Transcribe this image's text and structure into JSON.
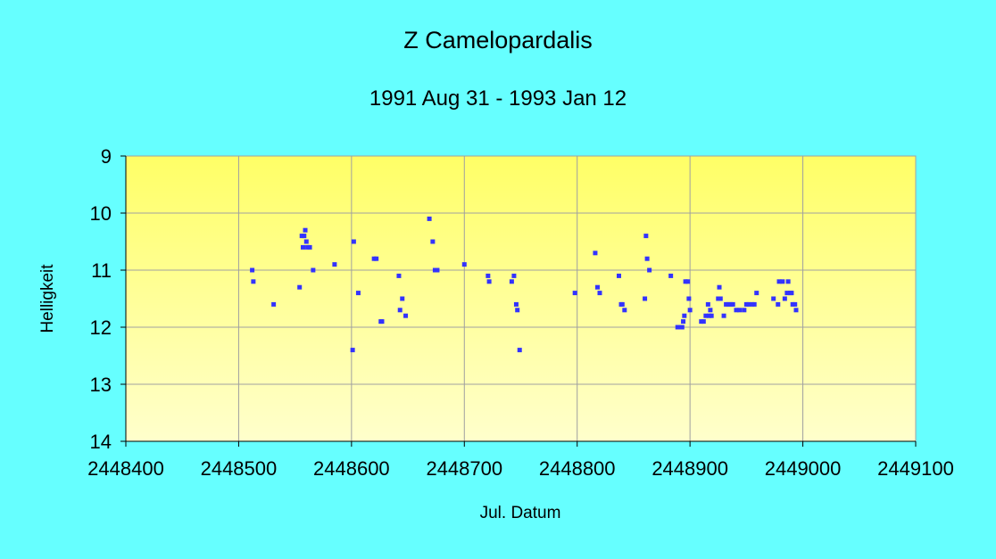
{
  "chart_data": {
    "type": "scatter",
    "title": "Z Camelopardalis",
    "subtitle": "1991 Aug 31 - 1993 Jan 12",
    "xlabel": "Jul. Datum",
    "ylabel": "Helligkeit",
    "xlim": [
      2448400,
      2449100
    ],
    "ylim": [
      9,
      14
    ],
    "y_inverted": true,
    "x_ticks": [
      2448400,
      2448500,
      2448600,
      2448700,
      2448800,
      2448900,
      2449000,
      2449100
    ],
    "y_ticks": [
      9,
      10,
      11,
      12,
      13,
      14
    ],
    "grid": true,
    "legend": "none",
    "colors": {
      "background": "#66FFFF",
      "plot_top": "#FFFF66",
      "plot_bottom": "#FFFFCC",
      "marker": "#3333FF",
      "gridline": "#A0A0A0"
    },
    "series": [
      {
        "points": [
          [
            2448512,
            11.0
          ],
          [
            2448513,
            11.2
          ],
          [
            2448531,
            11.6
          ],
          [
            2448554,
            11.3
          ],
          [
            2448556,
            10.4
          ],
          [
            2448557,
            10.6
          ],
          [
            2448558,
            10.4
          ],
          [
            2448559,
            10.3
          ],
          [
            2448560,
            10.5
          ],
          [
            2448561,
            10.6
          ],
          [
            2448563,
            10.6
          ],
          [
            2448566,
            11.0
          ],
          [
            2448585,
            10.9
          ],
          [
            2448601,
            12.4
          ],
          [
            2448602,
            10.5
          ],
          [
            2448606,
            11.4
          ],
          [
            2448620,
            10.8
          ],
          [
            2448622,
            10.8
          ],
          [
            2448626,
            11.9
          ],
          [
            2448627,
            11.9
          ],
          [
            2448642,
            11.1
          ],
          [
            2448643,
            11.7
          ],
          [
            2448645,
            11.5
          ],
          [
            2448648,
            11.8
          ],
          [
            2448669,
            10.1
          ],
          [
            2448672,
            10.5
          ],
          [
            2448674,
            11.0
          ],
          [
            2448676,
            11.0
          ],
          [
            2448700,
            10.9
          ],
          [
            2448721,
            11.1
          ],
          [
            2448722,
            11.2
          ],
          [
            2448742,
            11.2
          ],
          [
            2448744,
            11.1
          ],
          [
            2448746,
            11.6
          ],
          [
            2448747,
            11.7
          ],
          [
            2448749,
            12.4
          ],
          [
            2448798,
            11.4
          ],
          [
            2448816,
            10.7
          ],
          [
            2448818,
            11.3
          ],
          [
            2448820,
            11.4
          ],
          [
            2448837,
            11.1
          ],
          [
            2448839,
            11.6
          ],
          [
            2448840,
            11.6
          ],
          [
            2448842,
            11.7
          ],
          [
            2448860,
            11.5
          ],
          [
            2448861,
            10.4
          ],
          [
            2448862,
            10.8
          ],
          [
            2448864,
            11.0
          ],
          [
            2448883,
            11.1
          ],
          [
            2448889,
            12.0
          ],
          [
            2448891,
            12.0
          ],
          [
            2448893,
            12.0
          ],
          [
            2448894,
            11.9
          ],
          [
            2448895,
            11.8
          ],
          [
            2448896,
            11.2
          ],
          [
            2448898,
            11.2
          ],
          [
            2448899,
            11.5
          ],
          [
            2448900,
            11.7
          ],
          [
            2448910,
            11.9
          ],
          [
            2448912,
            11.9
          ],
          [
            2448914,
            11.8
          ],
          [
            2448916,
            11.6
          ],
          [
            2448917,
            11.8
          ],
          [
            2448918,
            11.7
          ],
          [
            2448919,
            11.8
          ],
          [
            2448925,
            11.5
          ],
          [
            2448926,
            11.3
          ],
          [
            2448927,
            11.5
          ],
          [
            2448930,
            11.8
          ],
          [
            2448932,
            11.6
          ],
          [
            2448934,
            11.6
          ],
          [
            2448936,
            11.6
          ],
          [
            2448938,
            11.6
          ],
          [
            2448941,
            11.7
          ],
          [
            2448944,
            11.7
          ],
          [
            2448948,
            11.7
          ],
          [
            2448950,
            11.6
          ],
          [
            2448952,
            11.6
          ],
          [
            2448955,
            11.6
          ],
          [
            2448957,
            11.6
          ],
          [
            2448959,
            11.4
          ],
          [
            2448974,
            11.5
          ],
          [
            2448978,
            11.6
          ],
          [
            2448979,
            11.2
          ],
          [
            2448982,
            11.2
          ],
          [
            2448984,
            11.5
          ],
          [
            2448986,
            11.4
          ],
          [
            2448987,
            11.2
          ],
          [
            2448989,
            11.4
          ],
          [
            2448990,
            11.4
          ],
          [
            2448991,
            11.6
          ],
          [
            2448993,
            11.6
          ],
          [
            2448994,
            11.7
          ]
        ]
      }
    ]
  }
}
